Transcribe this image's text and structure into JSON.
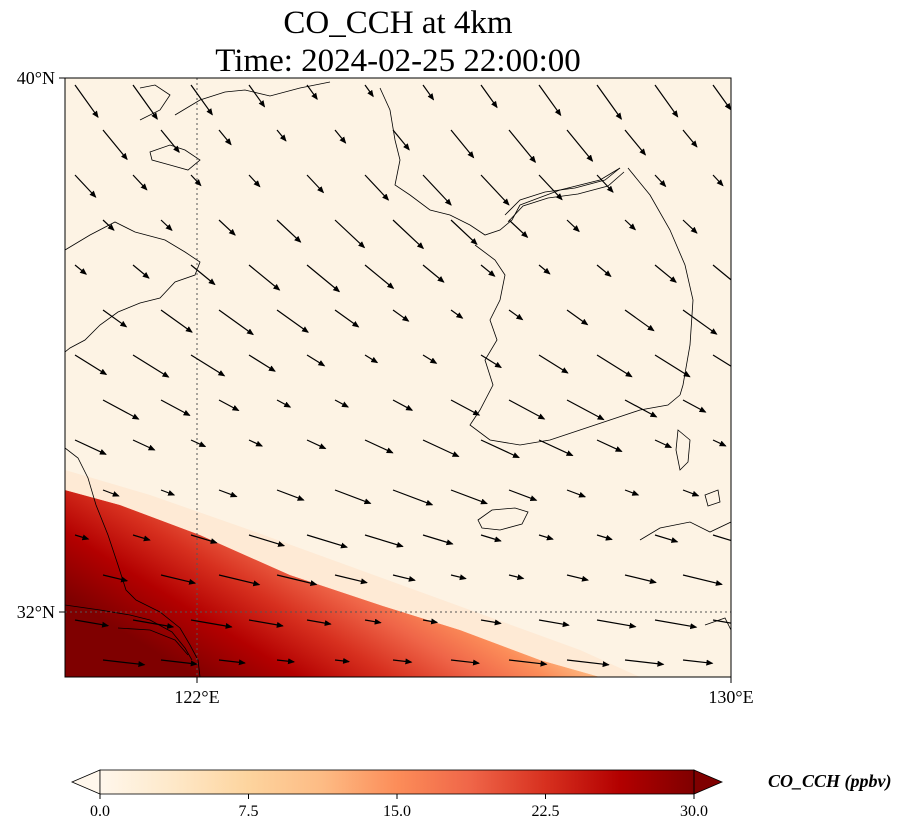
{
  "title": {
    "line1": "CO_CCH at 4km",
    "line2": "Time: 2024-02-25 22:00:00"
  },
  "map": {
    "extent": {
      "lon_min": 119,
      "lon_max": 130,
      "lat_min": 31,
      "lat_max": 40
    },
    "y_ticks": [
      {
        "lat": 40,
        "label": "40°N"
      },
      {
        "lat": 32,
        "label": "32°N"
      }
    ],
    "x_ticks": [
      {
        "lon": 122,
        "label": "122°E"
      },
      {
        "lon": 130,
        "label": "130°E"
      }
    ],
    "gridlines": {
      "lons": [
        122
      ],
      "lats": [
        32
      ]
    },
    "features": [
      "coastline",
      "wind-vectors",
      "CO_CCH-concentration-field"
    ],
    "field_description": "high CO_CCH (up to ~30 ppbv) in southwest corner near Shanghai/Yangtze delta, decreasing to ~0 northeast of a diagonal band",
    "wind_direction": "predominantly from northwest toward southeast in north; westerly toward east in south",
    "colors": {
      "background": "#fdf3e4",
      "max": "#7f0000"
    }
  },
  "colorbar": {
    "label": "CO_CCH (ppbv)",
    "min": 0.0,
    "max": 30.0,
    "extend": "both",
    "ticks": [
      "0.0",
      "7.5",
      "15.0",
      "22.5",
      "30.0"
    ],
    "colormap": "OrRd",
    "stops": [
      "#fff7ec",
      "#fee8c8",
      "#fdd49e",
      "#fdbb84",
      "#fc8d59",
      "#ef6548",
      "#d7301f",
      "#b30000",
      "#7f0000"
    ]
  }
}
